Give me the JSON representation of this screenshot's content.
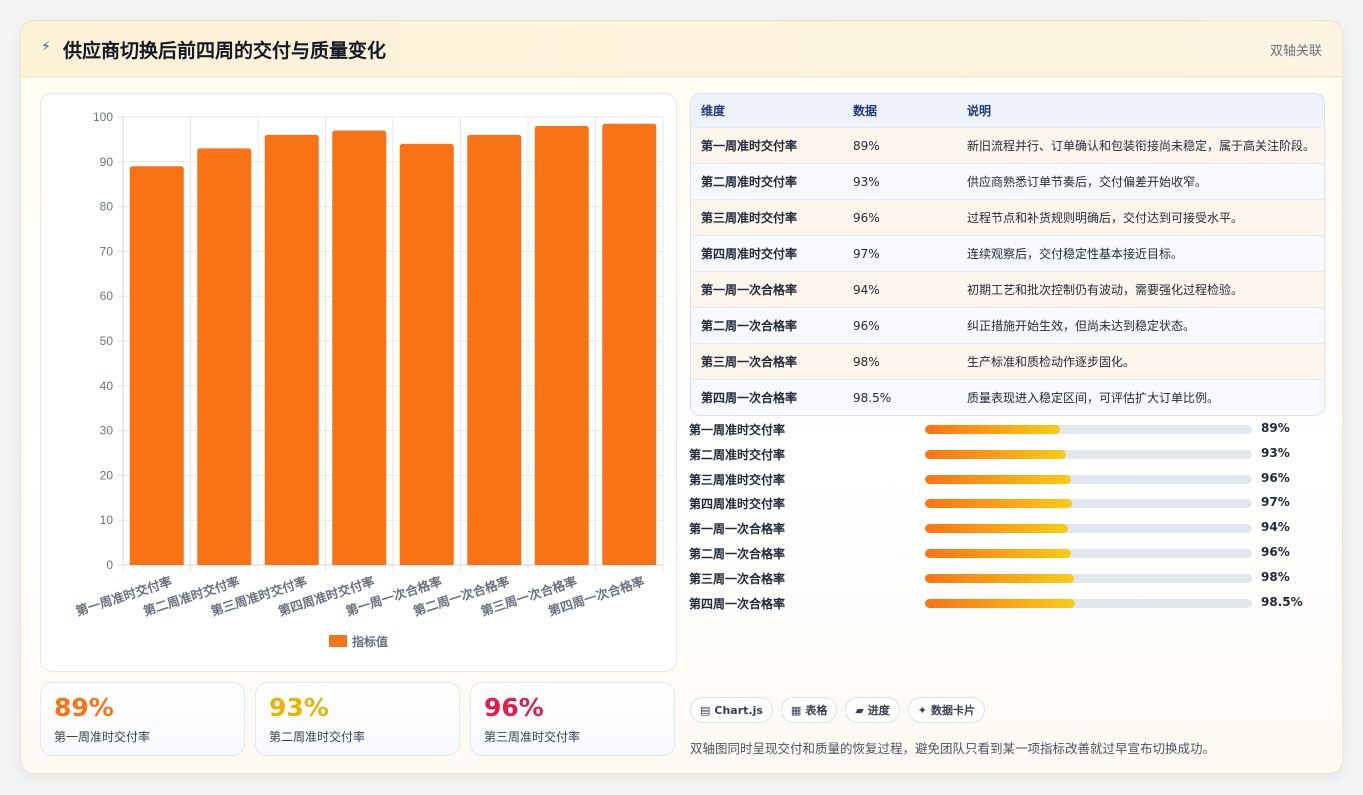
{
  "header": {
    "icon": "lightning-icon",
    "title": "供应商切换后前四周的交付与质量变化",
    "tag": "双轴关联"
  },
  "chart_data": {
    "type": "bar",
    "categories": [
      "第一周准时交付率",
      "第二周准时交付率",
      "第三周准时交付率",
      "第四周准时交付率",
      "第一周一次合格率",
      "第二周一次合格率",
      "第三周一次合格率",
      "第四周一次合格率"
    ],
    "series": [
      {
        "name": "指标值",
        "values": [
          89,
          93,
          96,
          97,
          94,
          96,
          98,
          98.5
        ],
        "color": "#f97316"
      }
    ],
    "ylim": [
      0,
      100
    ],
    "yticks": [
      0,
      10,
      20,
      30,
      40,
      50,
      60,
      70,
      80,
      90,
      100
    ],
    "grid": true,
    "legend": "bottom"
  },
  "table": {
    "headers": [
      "维度",
      "数据",
      "说明"
    ],
    "rows": [
      [
        "第一周准时交付率",
        "89%",
        "新旧流程并行、订单确认和包装衔接尚未稳定，属于高关注阶段。"
      ],
      [
        "第二周准时交付率",
        "93%",
        "供应商熟悉订单节奏后，交付偏差开始收窄。"
      ],
      [
        "第三周准时交付率",
        "96%",
        "过程节点和补货规则明确后，交付达到可接受水平。"
      ],
      [
        "第四周准时交付率",
        "97%",
        "连续观察后，交付稳定性基本接近目标。"
      ],
      [
        "第一周一次合格率",
        "94%",
        "初期工艺和批次控制仍有波动，需要强化过程检验。"
      ],
      [
        "第二周一次合格率",
        "96%",
        "纠正措施开始生效，但尚未达到稳定状态。"
      ],
      [
        "第三周一次合格率",
        "98%",
        "生产标准和质检动作逐步固化。"
      ],
      [
        "第四周一次合格率",
        "98.5%",
        "质量表现进入稳定区间，可评估扩大订单比例。"
      ]
    ]
  },
  "progress": [
    {
      "label": "第一周准时交付率",
      "value": 89,
      "text": "89%"
    },
    {
      "label": "第二周准时交付率",
      "value": 93,
      "text": "93%"
    },
    {
      "label": "第三周准时交付率",
      "value": 96,
      "text": "96%"
    },
    {
      "label": "第四周准时交付率",
      "value": 97,
      "text": "97%"
    },
    {
      "label": "第一周一次合格率",
      "value": 94,
      "text": "94%"
    },
    {
      "label": "第二周一次合格率",
      "value": 96,
      "text": "96%"
    },
    {
      "label": "第三周一次合格率",
      "value": 98,
      "text": "98%"
    },
    {
      "label": "第四周一次合格率",
      "value": 98.5,
      "text": "98.5%"
    }
  ],
  "kpis": [
    {
      "value": "89%",
      "caption": "第一周准时交付率",
      "color": "#f97316"
    },
    {
      "value": "93%",
      "caption": "第二周准时交付率",
      "color": "#eab308"
    },
    {
      "value": "96%",
      "caption": "第三周准时交付率",
      "color": "#e11d48"
    }
  ],
  "chips": [
    {
      "icon": "chart-icon",
      "glyph": "▤",
      "label": "Chart.js"
    },
    {
      "icon": "table-icon",
      "glyph": "▦",
      "label": "表格"
    },
    {
      "icon": "progress-icon",
      "glyph": "▰",
      "label": "进度"
    },
    {
      "icon": "sparkle-icon",
      "glyph": "✦",
      "label": "数据卡片"
    }
  ],
  "note": "双轴图同时呈现交付和质量的恢复过程，避免团队只看到某一项指标改善就过早宣布切换成功。"
}
